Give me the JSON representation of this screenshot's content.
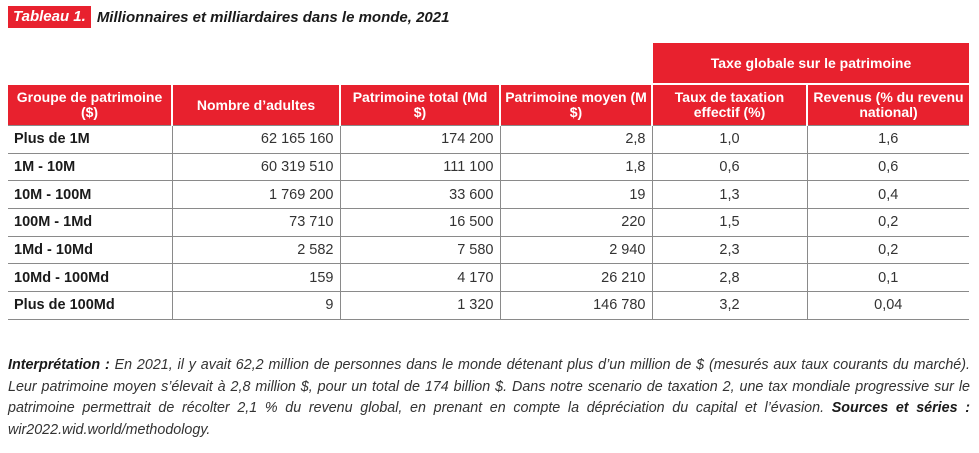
{
  "title": {
    "tag": "Tableau 1.",
    "text": "Millionnaires et milliardaires dans le monde, 2021"
  },
  "table": {
    "group_header": "Taxe globale sur le patrimoine",
    "headers": [
      "Groupe de patrimoine ($)",
      "Nombre d’adultes",
      "Patrimoine total (Md $)",
      "Patrimoine moyen (M $)",
      "Taux de taxation effectif (%)",
      "Revenus (% du revenu national)"
    ],
    "rows": [
      [
        "Plus de 1M",
        "62 165 160",
        "174 200",
        "2,8",
        "1,0",
        "1,6"
      ],
      [
        "1M - 10M",
        "60 319 510",
        "111 100",
        "1,8",
        "0,6",
        "0,6"
      ],
      [
        "10M - 100M",
        "1 769 200",
        "33 600",
        "19",
        "1,3",
        "0,4"
      ],
      [
        "100M - 1Md",
        "73 710",
        "16 500",
        "220",
        "1,5",
        "0,2"
      ],
      [
        "1Md - 10Md",
        "2 582",
        "7 580",
        "2 940",
        "2,3",
        "0,2"
      ],
      [
        "10Md - 100Md",
        "159",
        "4 170",
        "26 210",
        "2,8",
        "0,1"
      ],
      [
        "Plus de 100Md",
        "9",
        "1 320",
        "146 780",
        "3,2",
        "0,04"
      ]
    ]
  },
  "note": {
    "interp_label": "Interprétation :",
    "interp_text": " En 2021, il y avait 62,2 million de personnes dans le monde détenant plus d’un million de $ (mesurés aux taux courants du marché). Leur patrimoine moyen s’élevait à 2,8 million $, pour un total de 174 billion $. Dans notre scenario de taxation 2, une tax mondiale progressive sur le patrimoine permettrait de récolter 2,1 % du revenu global, en prenant en compte la dépréciation du capital et l’évasion. ",
    "sources_label": "Sources et séries :",
    "sources_text": " wir2022.wid.world/methodology."
  }
}
